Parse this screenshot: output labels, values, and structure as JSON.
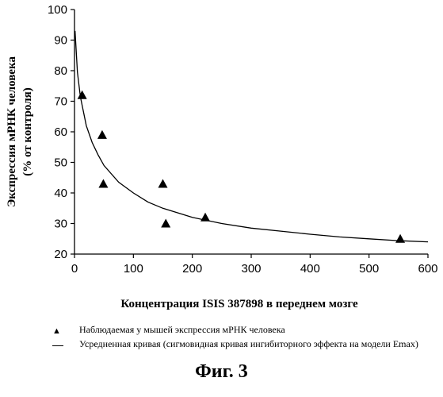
{
  "chart_data": {
    "type": "scatter",
    "title": "",
    "xlabel": "Концентрация ISIS 387898 в переднем мозге",
    "ylabel_line1": "Экспрессия мРНК человека",
    "ylabel_line2": "(% от контроля)",
    "xlim": [
      0,
      600
    ],
    "ylim": [
      20,
      100
    ],
    "xticks": [
      0,
      100,
      200,
      300,
      400,
      500,
      600
    ],
    "yticks": [
      20,
      30,
      40,
      50,
      60,
      70,
      80,
      90,
      100
    ],
    "grid": false,
    "legend_position": "bottom",
    "series": [
      {
        "name": "Наблюдаемая у мышей экспрессия мРНК человека",
        "kind": "markers",
        "marker": "triangle",
        "points": [
          {
            "x": 13,
            "y": 72
          },
          {
            "x": 47,
            "y": 59
          },
          {
            "x": 49,
            "y": 43
          },
          {
            "x": 150,
            "y": 43
          },
          {
            "x": 155,
            "y": 30
          },
          {
            "x": 222,
            "y": 32
          },
          {
            "x": 553,
            "y": 25
          }
        ]
      },
      {
        "name": "Усредненная кривая (сигмовидная кривая ингибиторного эффекта на модели Emax)",
        "kind": "line",
        "points": [
          {
            "x": 1,
            "y": 93
          },
          {
            "x": 5,
            "y": 79.5
          },
          {
            "x": 10,
            "y": 71.5
          },
          {
            "x": 20,
            "y": 62
          },
          {
            "x": 30,
            "y": 56.5
          },
          {
            "x": 40,
            "y": 52.5
          },
          {
            "x": 50,
            "y": 49
          },
          {
            "x": 75,
            "y": 43.5
          },
          {
            "x": 100,
            "y": 40
          },
          {
            "x": 125,
            "y": 37
          },
          {
            "x": 150,
            "y": 35
          },
          {
            "x": 200,
            "y": 32
          },
          {
            "x": 250,
            "y": 30
          },
          {
            "x": 300,
            "y": 28.5
          },
          {
            "x": 350,
            "y": 27.5
          },
          {
            "x": 400,
            "y": 26.5
          },
          {
            "x": 450,
            "y": 25.6
          },
          {
            "x": 500,
            "y": 25
          },
          {
            "x": 550,
            "y": 24.4
          },
          {
            "x": 600,
            "y": 24
          }
        ]
      }
    ]
  },
  "legend": {
    "items": [
      {
        "symbol": "▲",
        "text": "Наблюдаемая у мышей экспрессия мРНК человека"
      },
      {
        "symbol": "line",
        "text": "Усредненная кривая (сигмовидная кривая ингибиторного эффекта на модели Emax)"
      }
    ]
  },
  "caption": "Фиг. 3",
  "colors": {
    "ink": "#000000",
    "background": "#ffffff"
  }
}
